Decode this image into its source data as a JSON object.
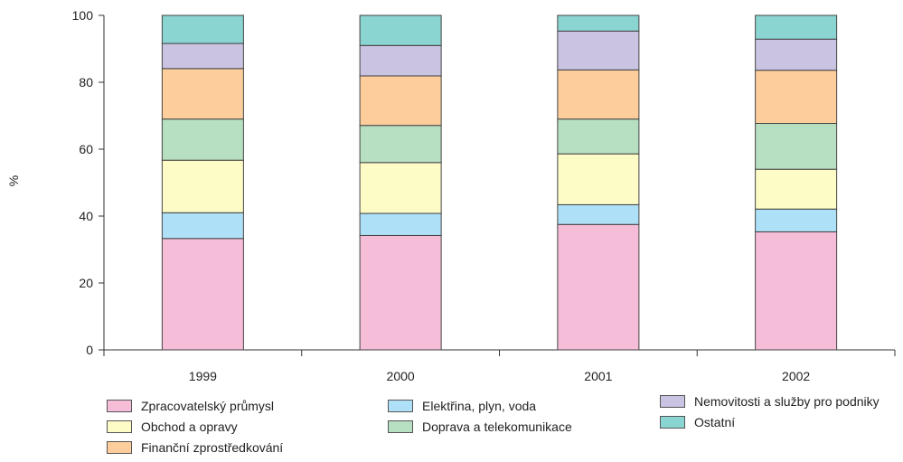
{
  "chart_data": {
    "type": "bar",
    "stacked": true,
    "categories": [
      "1999",
      "2000",
      "2001",
      "2002"
    ],
    "series": [
      {
        "name": "Zpracovatelský průmysl",
        "color": "#f6bdd8",
        "values": [
          33.3,
          34.2,
          37.5,
          35.3
        ]
      },
      {
        "name": "Elektřina, plyn, voda",
        "color": "#aee0f8",
        "values": [
          7.7,
          6.6,
          5.9,
          6.8
        ]
      },
      {
        "name": "Obchod a opravy",
        "color": "#fefcc6",
        "values": [
          15.7,
          15.2,
          15.2,
          11.9
        ]
      },
      {
        "name": "Doprava a telekomunikace",
        "color": "#b7dfc1",
        "values": [
          12.3,
          11.1,
          10.4,
          13.7
        ]
      },
      {
        "name": "Finanční zprostředkování",
        "color": "#fdcd9c",
        "values": [
          15.1,
          14.8,
          14.7,
          15.9
        ]
      },
      {
        "name": "Nemovitosti a služby pro podniky",
        "color": "#cac3e2",
        "values": [
          7.5,
          9.1,
          11.6,
          9.3
        ]
      },
      {
        "name": "Ostatní",
        "color": "#8ad4d2",
        "values": [
          8.4,
          9.0,
          4.7,
          7.1
        ]
      }
    ],
    "ylabel": "%",
    "ylim": [
      0,
      100
    ],
    "yticks": [
      "0",
      "20",
      "40",
      "60",
      "80",
      "100"
    ],
    "grid": false,
    "legend_position": "bottom"
  }
}
